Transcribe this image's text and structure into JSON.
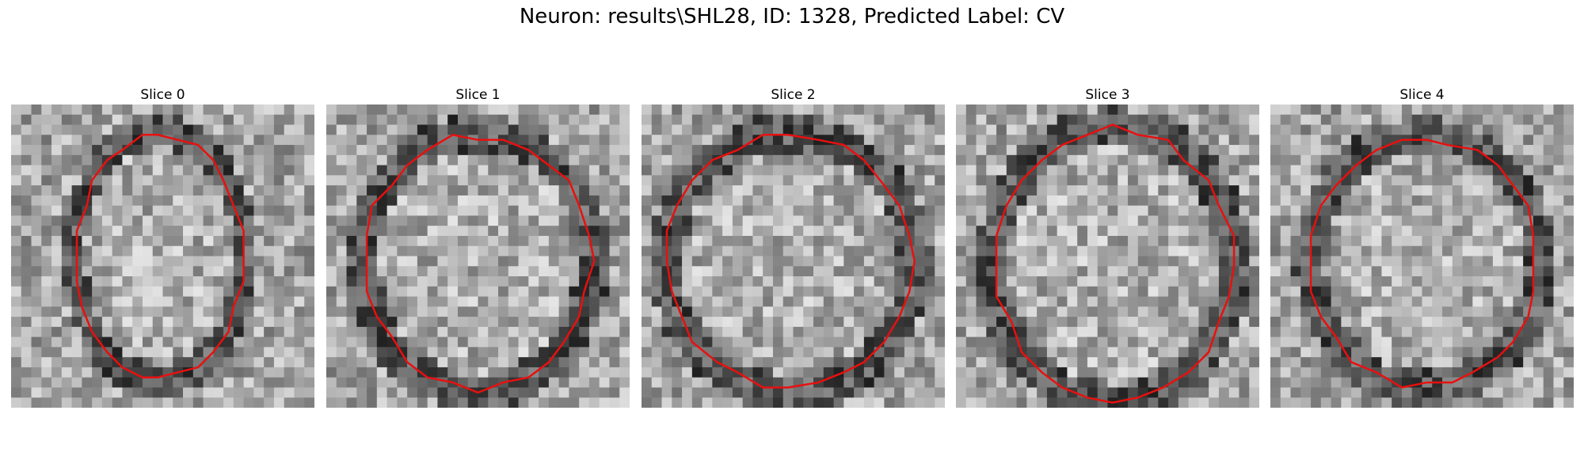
{
  "figure": {
    "title": "Neuron: results\\SHL28, ID: 1328, Predicted Label: CV"
  },
  "panels": [
    {
      "title": "Slice 0"
    },
    {
      "title": "Slice 1"
    },
    {
      "title": "Slice 2"
    },
    {
      "title": "Slice 3"
    },
    {
      "title": "Slice 4"
    }
  ],
  "colors": {
    "contour": "#e8100f",
    "background": "#ffffff"
  }
}
